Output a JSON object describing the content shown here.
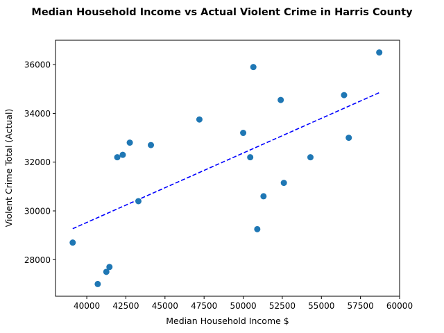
{
  "chart_data": {
    "type": "scatter",
    "title": "Median Household Income vs Actual Violent Crime in Harris County",
    "xlabel": "Median Household Income $",
    "ylabel": "Violent Crime Total (Actual)",
    "xlim": [
      38000,
      60000
    ],
    "ylim": [
      26500,
      37000
    ],
    "x_ticks": [
      40000,
      42500,
      45000,
      47500,
      50000,
      52500,
      55000,
      57500,
      60000
    ],
    "y_ticks": [
      28000,
      30000,
      32000,
      34000,
      36000
    ],
    "x_tick_labels": [
      "40000",
      "42500",
      "45000",
      "47500",
      "50000",
      "52500",
      "55000",
      "57500",
      "60000"
    ],
    "y_tick_labels": [
      "28000",
      "30000",
      "32000",
      "34000",
      "36000"
    ],
    "grid": false,
    "series": [
      {
        "point_color": "#1f77b4",
        "points": [
          {
            "x": 39100,
            "y": 28700
          },
          {
            "x": 40700,
            "y": 27000
          },
          {
            "x": 41250,
            "y": 27500
          },
          {
            "x": 41450,
            "y": 27700
          },
          {
            "x": 41950,
            "y": 32200
          },
          {
            "x": 42300,
            "y": 32300
          },
          {
            "x": 42750,
            "y": 32800
          },
          {
            "x": 43300,
            "y": 30400
          },
          {
            "x": 44100,
            "y": 32700
          },
          {
            "x": 47200,
            "y": 33750
          },
          {
            "x": 50000,
            "y": 33200
          },
          {
            "x": 50450,
            "y": 32200
          },
          {
            "x": 50650,
            "y": 35900
          },
          {
            "x": 50900,
            "y": 29250
          },
          {
            "x": 51300,
            "y": 30600
          },
          {
            "x": 52400,
            "y": 34550
          },
          {
            "x": 52600,
            "y": 31150
          },
          {
            "x": 54300,
            "y": 32200
          },
          {
            "x": 56450,
            "y": 34750
          },
          {
            "x": 56750,
            "y": 33000
          },
          {
            "x": 58700,
            "y": 36500
          }
        ]
      }
    ],
    "trendline": {
      "style": "dashed",
      "color": "#0000ff",
      "points": [
        {
          "x": 39100,
          "y": 29270
        },
        {
          "x": 58700,
          "y": 34850
        }
      ]
    }
  }
}
